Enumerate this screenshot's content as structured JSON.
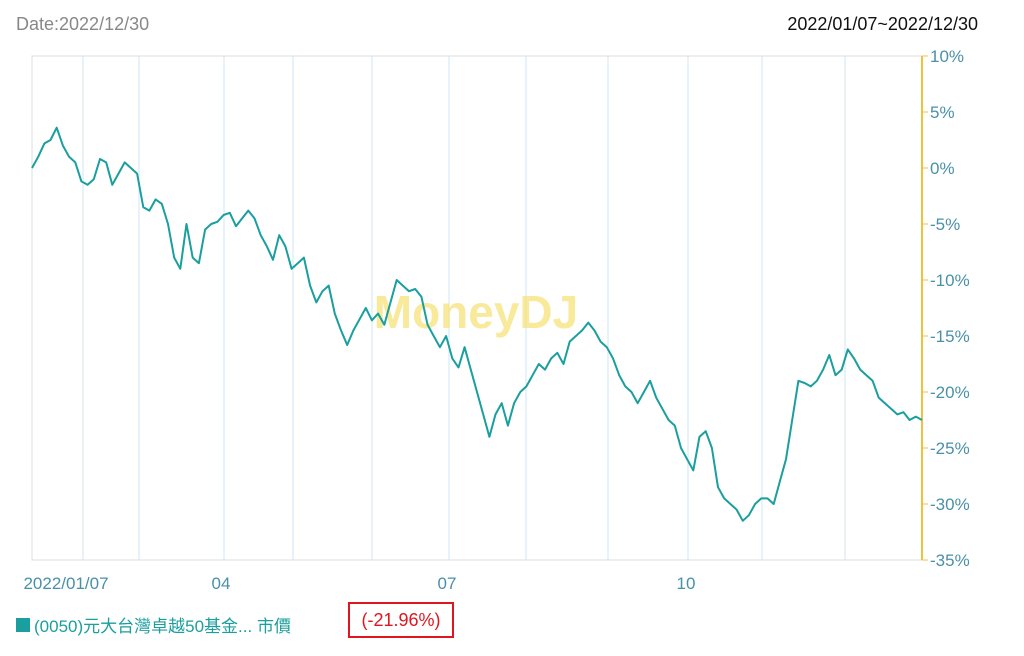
{
  "header": {
    "date_label": "Date:2022/12/30",
    "range_label": "2022/01/07~2022/12/30"
  },
  "watermark": "MoneyDJ",
  "legend": {
    "series_name": "(0050)元大台灣卓越50基金... 市價",
    "change": "(-21.96%)",
    "color": "#1a9e9e",
    "change_color": "#e0161e"
  },
  "chart_data": {
    "type": "line",
    "x_ticks": [
      "2022/01/07",
      "04",
      "07",
      "10"
    ],
    "y_ticks": [
      "10%",
      "5%",
      "0%",
      "-5%",
      "-10%",
      "-15%",
      "-20%",
      "-25%",
      "-30%",
      "-35%"
    ],
    "ylim": [
      -35,
      10
    ],
    "y_axis_side": "right",
    "grid": true,
    "series": [
      {
        "values": [
          0,
          1,
          2.2,
          2.5,
          3.6,
          2,
          1,
          0.5,
          -1.2,
          -1.5,
          -1,
          0.8,
          0.5,
          -1.5,
          -0.5,
          0.5,
          0,
          -0.5,
          -3.5,
          -3.8,
          -2.8,
          -3.2,
          -5,
          -8,
          -9,
          -5,
          -8,
          -8.5,
          -5.5,
          -5,
          -4.8,
          -4.2,
          -4,
          -5.2,
          -4.5,
          -3.8,
          -4.5,
          -6,
          -7,
          -8.2,
          -6,
          -7,
          -9,
          -8.5,
          -8,
          -10.5,
          -12,
          -11,
          -10.5,
          -13,
          -14.5,
          -15.8,
          -14.5,
          -13.5,
          -12.5,
          -13.6,
          -13,
          -14,
          -12,
          -10,
          -10.5,
          -11,
          -10.8,
          -11.5,
          -14,
          -15,
          -16,
          -15,
          -17,
          -17.8,
          -16,
          -18,
          -20,
          -22,
          -24,
          -22,
          -21,
          -23,
          -21,
          -20,
          -19.5,
          -18.5,
          -17.5,
          -18,
          -17,
          -16.5,
          -17.5,
          -15.5,
          -15,
          -14.5,
          -13.8,
          -14.5,
          -15.5,
          -16,
          -17,
          -18.5,
          -19.5,
          -20,
          -21,
          -20,
          -19,
          -20.5,
          -21.5,
          -22.5,
          -23,
          -25,
          -26,
          -27,
          -24,
          -23.5,
          -25,
          -28.5,
          -29.5,
          -30,
          -30.5,
          -31.5,
          -31,
          -30,
          -29.5,
          -29.5,
          -30,
          -28,
          -26,
          -22.5,
          -19,
          -19.2,
          -19.5,
          -19,
          -18,
          -16.7,
          -18.5,
          -18,
          -16.2,
          -17,
          -18,
          -18.5,
          -19,
          -20.5,
          -21,
          -21.5,
          -22,
          -21.8,
          -22.5,
          -22.2,
          -22.5
        ]
      }
    ]
  }
}
